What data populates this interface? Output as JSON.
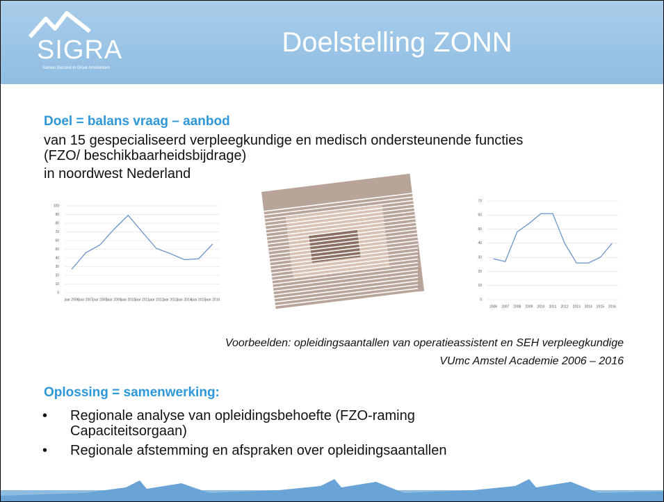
{
  "header": {
    "title": "Doelstelling ZONN",
    "logo": "SIGRA",
    "logo_tagline": "Samen Gezond in Groot Amsterdam"
  },
  "goal": {
    "heading": "Doel = balans vraag – aanbod",
    "lines": [
      "van 15 gespecialiseerd verpleegkundige en medisch ondersteunende functies (FZO/ beschikbaarheidsbijdrage)",
      "in noordwest Nederland"
    ]
  },
  "chart_data": [
    {
      "type": "line",
      "categories": [
        "jaar 2006",
        "jaar 2007",
        "jaar 2008",
        "jaar 2009",
        "jaar 2010",
        "jaar 2011",
        "jaar 2012",
        "jaar 2013",
        "jaar 2014",
        "jaar 2015",
        "jaar 2016"
      ],
      "values": [
        27,
        46,
        55,
        73,
        89,
        70,
        51,
        45,
        38,
        39,
        56
      ],
      "color": "#6a92c8",
      "ylim": [
        0,
        100
      ],
      "yticks": [
        0,
        10,
        20,
        30,
        40,
        50,
        60,
        70,
        80,
        90,
        100
      ],
      "grid": true
    },
    {
      "type": "line",
      "categories": [
        "2006",
        "2007",
        "2008",
        "2009",
        "2010",
        "2011",
        "2012",
        "2013",
        "2014",
        "2015",
        "2016"
      ],
      "values": [
        29,
        27,
        48,
        54,
        61,
        61,
        40,
        26,
        26,
        30,
        40
      ],
      "color": "#6a92c8",
      "ylim": [
        0,
        70
      ],
      "yticks": [
        0,
        10,
        20,
        30,
        40,
        50,
        60,
        70
      ],
      "grid": true
    }
  ],
  "caption": {
    "lines": [
      "Voorbeelden: opleidingsaantallen van operatieassistent en SEH verpleegkundige",
      "VUmc Amstel Academie 2006 – 2016"
    ]
  },
  "solution": {
    "heading": "Oplossing = samenwerking:",
    "bullets": [
      "Regionale analyse van opleidingsbehoefte (FZO-raming Capaciteitsorgaan)",
      "Regionale afstemming en afspraken over opleidingsaantallen"
    ]
  }
}
